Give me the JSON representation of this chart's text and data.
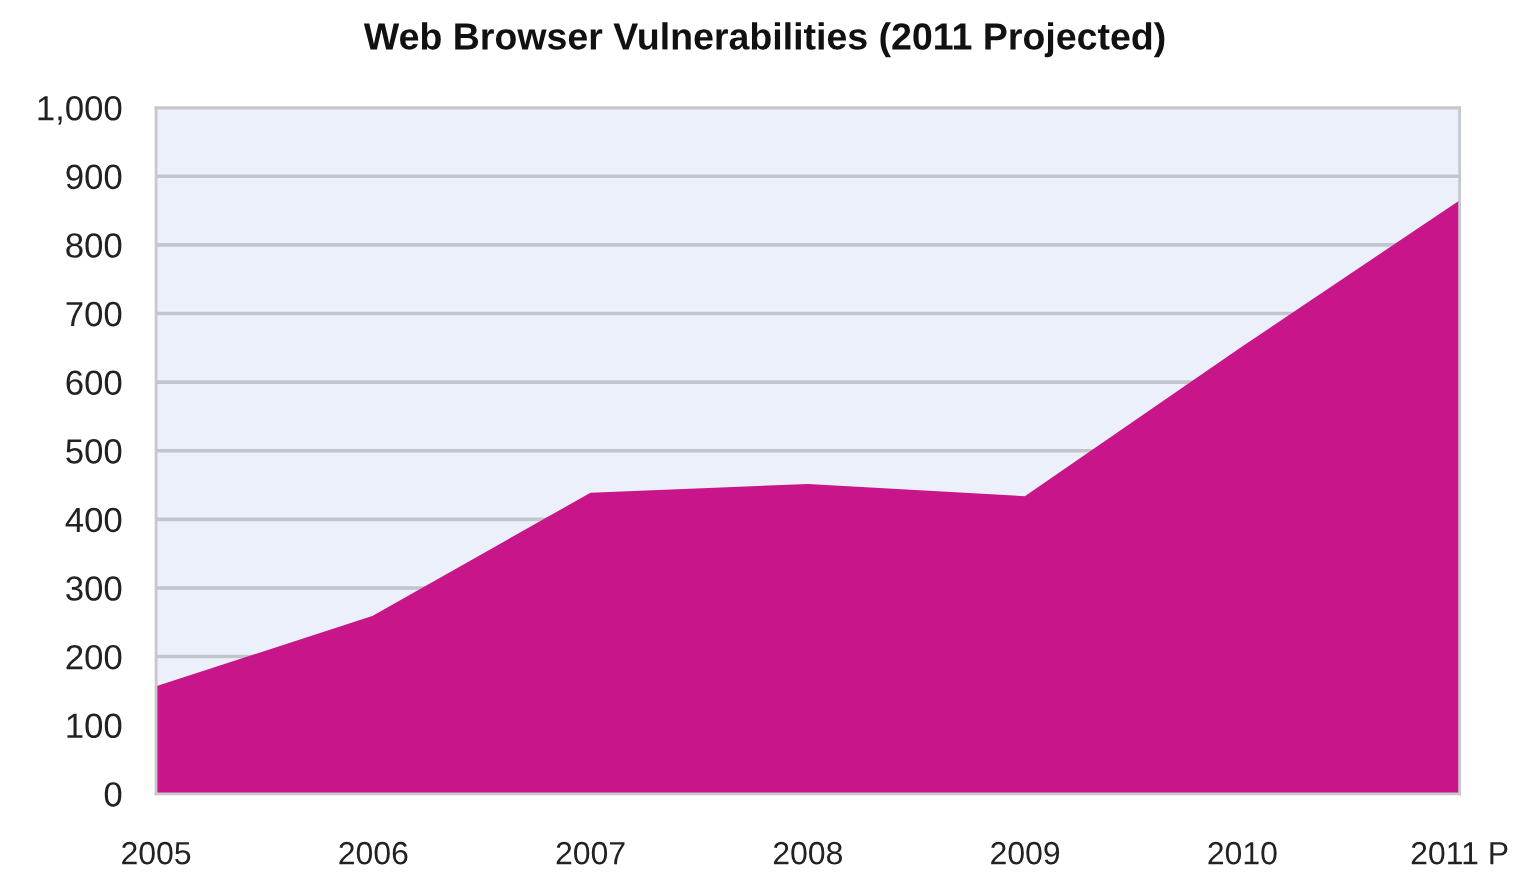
{
  "chart_data": {
    "type": "area",
    "title": "Web Browser Vulnerabilities (2011 Projected)",
    "categories": [
      "2005",
      "2006",
      "2007",
      "2008",
      "2009",
      "2010",
      "2011 P"
    ],
    "values": [
      155,
      258,
      437,
      450,
      432,
      650,
      863
    ],
    "color": "#c8168a",
    "ylim": [
      0,
      1000
    ],
    "yticks": [
      0,
      100,
      200,
      300,
      400,
      500,
      600,
      700,
      800,
      900,
      {
        "value": 1000,
        "label": "1,000"
      }
    ],
    "grid": "y"
  }
}
